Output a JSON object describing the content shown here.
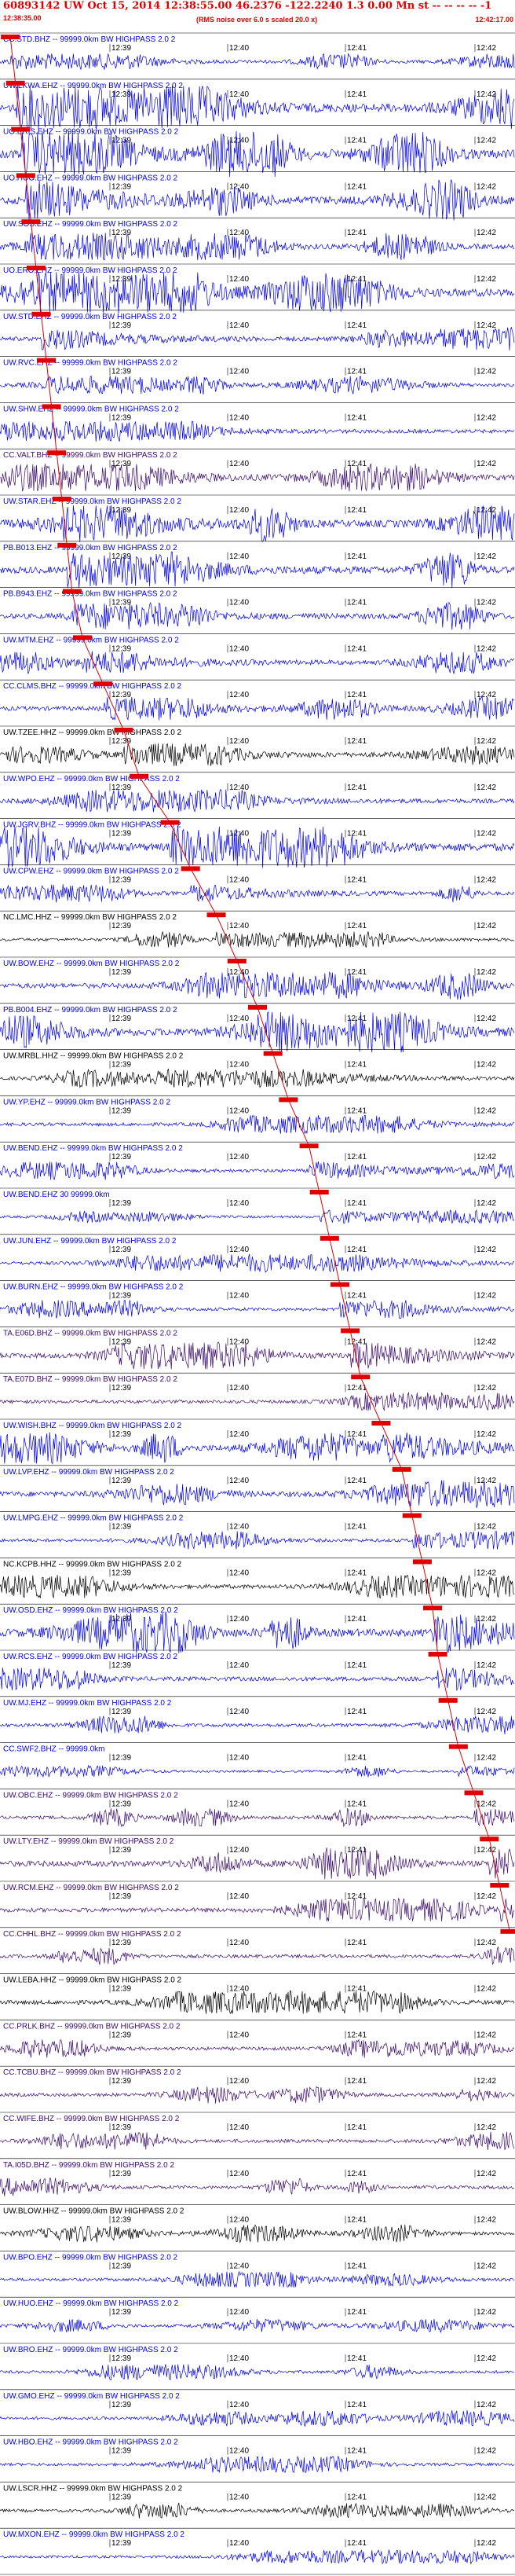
{
  "header": {
    "title": "60893142 UW Oct 15, 2014 12:38:55.00   46.2376 -122.2240  1.3 0.00 Mn st -- -- -- -- -1",
    "start_time": "12:38:35.00",
    "note": "(RMS noise over 6.0 s scaled 20.0 x)",
    "end_time": "12:42:17.00"
  },
  "time_ticks": [
    "12:39",
    "12:40",
    "12:41",
    "12:42"
  ],
  "colors": {
    "blue": "#0000ee",
    "black": "#000000",
    "purple": "#3a0a6e",
    "pick": "#e00000"
  },
  "traces": [
    {
      "label": "CC.STD.BHZ -- 99999.0km BW  HIGHPASS  2.0  2",
      "color": "blue",
      "amp": 0.35,
      "pick": 0.02
    },
    {
      "label": "UW.LKWA.EHZ -- 99999.0km BW  HIGHPASS  2.0  2",
      "color": "blue",
      "amp": 1.0,
      "pick": 0.03
    },
    {
      "label": "UO.ERIS.EHZ -- 99999.0km BW  HIGHPASS  2.0  2",
      "color": "blue",
      "amp": 1.0,
      "pick": 0.04
    },
    {
      "label": "UO.HUG.EHZ -- 99999.0km BW  HIGHPASS  2.0  2",
      "color": "blue",
      "amp": 0.9,
      "pick": 0.05
    },
    {
      "label": "UW.SOS.EHZ -- 99999.0km BW  HIGHPASS  2.0  2",
      "color": "blue",
      "amp": 0.6,
      "pick": 0.06
    },
    {
      "label": "UO.ERO.EHZ -- 99999.0km BW  HIGHPASS  2.0  2",
      "color": "blue",
      "amp": 0.9,
      "pick": 0.07
    },
    {
      "label": "UW.STD.EHZ -- 99999.0km BW  HIGHPASS  2.0  2",
      "color": "blue",
      "amp": 0.5,
      "pick": 0.08
    },
    {
      "label": "UW.RVC.EHZ -- 99999.0km BW  HIGHPASS  2.0  2",
      "color": "blue",
      "amp": 0.4,
      "pick": 0.09
    },
    {
      "label": "UW.SHW.EHZ -- 99999.0km BW  HIGHPASS  2.0  2",
      "color": "blue",
      "amp": 0.45,
      "pick": 0.1
    },
    {
      "label": "CC.VALT.BHZ -- 99999.0km BW  HIGHPASS  2.0  2",
      "color": "purple",
      "amp": 0.6,
      "pick": 0.11
    },
    {
      "label": "UW.STAR.EHZ -- 99999.0km BW  HIGHPASS  2.0  2",
      "color": "blue",
      "amp": 0.8,
      "pick": 0.12
    },
    {
      "label": "PB.B013.EHZ -- 99999.0km BW  HIGHPASS  2.0  2",
      "color": "blue",
      "amp": 0.8,
      "pick": 0.13
    },
    {
      "label": "PB.B943.EHZ -- 99999.0km BW  HIGHPASS  2.0  2",
      "color": "blue",
      "amp": 0.6,
      "pick": 0.14
    },
    {
      "label": "UW.MTM.EHZ -- 99999.0km BW  HIGHPASS  2.0  2",
      "color": "blue",
      "amp": 0.5,
      "pick": 0.16
    },
    {
      "label": "CC.CLMS.BHZ -- 99999.0km BW  HIGHPASS  2.0  2",
      "color": "blue",
      "amp": 0.5,
      "pick": 0.2
    },
    {
      "label": "UW.TZEE.HHZ -- 99999.0km BW  HIGHPASS  2.0  2",
      "color": "black",
      "amp": 0.5,
      "pick": 0.24
    },
    {
      "label": "UW.WPO.EHZ -- 99999.0km BW  HIGHPASS  2.0  2",
      "color": "blue",
      "amp": 0.5,
      "pick": 0.27
    },
    {
      "label": "UW.JGRV.BHZ -- 99999.0km BW  HIGHPASS  2.0  2",
      "color": "blue",
      "amp": 0.9,
      "pick": 0.33
    },
    {
      "label": "UW.CPW.EHZ -- 99999.0km BW  HIGHPASS  2.0  2",
      "color": "blue",
      "amp": 0.4,
      "pick": 0.37
    },
    {
      "label": "NC.LMC.HHZ -- 99999.0km BW  HIGHPASS  2.0  2",
      "color": "black",
      "amp": 0.35,
      "pick": 0.42
    },
    {
      "label": "UW.BOW.EHZ -- 99999.0km BW  HIGHPASS  2.0  2",
      "color": "blue",
      "amp": 0.6,
      "pick": 0.46
    },
    {
      "label": "PB.B004.EHZ -- 99999.0km BW  HIGHPASS  2.0  2",
      "color": "blue",
      "amp": 0.9,
      "pick": 0.5
    },
    {
      "label": "UW.MRBL.HHZ -- 99999.0km BW  HIGHPASS  2.0  2",
      "color": "black",
      "amp": 0.4,
      "pick": 0.53
    },
    {
      "label": "UW.YP.EHZ -- 99999.0km BW  HIGHPASS  2.0  2",
      "color": "blue",
      "amp": 0.4,
      "pick": 0.56
    },
    {
      "label": "UW.BEND.EHZ -- 99999.0km BW  HIGHPASS  2.0  2",
      "color": "blue",
      "amp": 0.4,
      "pick": 0.6
    },
    {
      "label": "UW.BEND.EHZ  30  99999.0km",
      "color": "blue",
      "amp": 0.3,
      "pick": 0.62
    },
    {
      "label": "UW.JUN.EHZ -- 99999.0km BW  HIGHPASS  2.0  2",
      "color": "blue",
      "amp": 0.4,
      "pick": 0.64
    },
    {
      "label": "UW.BURN.EHZ -- 99999.0km BW  HIGHPASS  2.0  2",
      "color": "blue",
      "amp": 0.4,
      "pick": 0.66
    },
    {
      "label": "TA.E06D.BHZ -- 99999.0km BW  HIGHPASS  2.0  2",
      "color": "purple",
      "amp": 0.6,
      "pick": 0.68
    },
    {
      "label": "TA.E07D.BHZ -- 99999.0km BW  HIGHPASS  2.0  2",
      "color": "purple",
      "amp": 0.4,
      "pick": 0.7
    },
    {
      "label": "UW.WISH.BHZ -- 99999.0km BW  HIGHPASS  2.0  2",
      "color": "blue",
      "amp": 0.7,
      "pick": 0.74
    },
    {
      "label": "UW.LVP.EHZ -- 99999.0km BW  HIGHPASS  2.0  2",
      "color": "blue",
      "amp": 0.6,
      "pick": 0.78
    },
    {
      "label": "UW.LMPG.EHZ -- 99999.0km BW  HIGHPASS  2.0  2",
      "color": "blue",
      "amp": 0.4,
      "pick": 0.8
    },
    {
      "label": "NC.KCPB.HHZ -- 99999.0km BW  HIGHPASS  2.0  2",
      "color": "black",
      "amp": 0.5,
      "pick": 0.82
    },
    {
      "label": "UW.OSD.EHZ -- 99999.0km BW  HIGHPASS  2.0  2",
      "color": "blue",
      "amp": 0.9,
      "pick": 0.84
    },
    {
      "label": "UW.RCS.EHZ -- 99999.0km BW  HIGHPASS  2.0  2",
      "color": "blue",
      "amp": 0.5,
      "pick": 0.85
    },
    {
      "label": "UW.MJ.EHZ -- 99999.0km BW  HIGHPASS  2.0  2",
      "color": "blue",
      "amp": 0.4,
      "pick": 0.87
    },
    {
      "label": "CC.SWF2.BHZ -- 99999.0km",
      "color": "blue",
      "amp": 0.25,
      "pick": 0.89
    },
    {
      "label": "UW.OBC.EHZ -- 99999.0km BW  HIGHPASS  2.0  2",
      "color": "purple",
      "amp": 0.4,
      "pick": 0.92
    },
    {
      "label": "UW.LTY.EHZ -- 99999.0km BW  HIGHPASS  2.0  2",
      "color": "purple",
      "amp": 0.7,
      "pick": 0.95
    },
    {
      "label": "UW.RCM.EHZ -- 99999.0km BW  HIGHPASS  2.0  2",
      "color": "purple",
      "amp": 0.5,
      "pick": 0.97
    },
    {
      "label": "CC.CHHL.BHZ -- 99999.0km BW  HIGHPASS  2.0  2",
      "color": "purple",
      "amp": 0.4,
      "pick": 0.99
    },
    {
      "label": "UW.LEBA.HHZ -- 99999.0km BW  HIGHPASS  2.0  2",
      "color": "black",
      "amp": 0.5,
      "pick": null
    },
    {
      "label": "CC.PRLK.BHZ -- 99999.0km BW  HIGHPASS  2.0  2",
      "color": "purple",
      "amp": 0.4,
      "pick": null
    },
    {
      "label": "CC.TCBU.BHZ -- 99999.0km BW  HIGHPASS  2.0  2",
      "color": "purple",
      "amp": 0.4,
      "pick": null
    },
    {
      "label": "CC.WIFE.BHZ -- 99999.0km BW  HIGHPASS  2.0  2",
      "color": "purple",
      "amp": 0.4,
      "pick": null
    },
    {
      "label": "TA.I05D.BHZ -- 99999.0km BW  HIGHPASS  2.0  2",
      "color": "purple",
      "amp": 0.4,
      "pick": null
    },
    {
      "label": "UW.BLOW.HHZ -- 99999.0km BW  HIGHPASS  2.0  2",
      "color": "black",
      "amp": 0.4,
      "pick": null
    },
    {
      "label": "UW.BPO.EHZ -- 99999.0km BW  HIGHPASS  2.0  2",
      "color": "blue",
      "amp": 0.35,
      "pick": null
    },
    {
      "label": "UW.HUO.EHZ -- 99999.0km BW  HIGHPASS  2.0  2",
      "color": "blue",
      "amp": 0.3,
      "pick": null
    },
    {
      "label": "UW.BRO.EHZ -- 99999.0km BW  HIGHPASS  2.0  2",
      "color": "blue",
      "amp": 0.35,
      "pick": null
    },
    {
      "label": "UW.GMO.EHZ -- 99999.0km BW  HIGHPASS  2.0  2",
      "color": "blue",
      "amp": 0.35,
      "pick": null
    },
    {
      "label": "UW.HBO.EHZ -- 99999.0km BW  HIGHPASS  2.0  2",
      "color": "blue",
      "amp": 0.35,
      "pick": null
    },
    {
      "label": "UW.LSCR.HHZ -- 99999.0km BW  HIGHPASS  2.0  2",
      "color": "black",
      "amp": 0.35,
      "pick": null
    },
    {
      "label": "UW.MXON.EHZ -- 99999.0km BW  HIGHPASS  2.0  2",
      "color": "blue",
      "amp": 0.3,
      "pick": null
    }
  ]
}
